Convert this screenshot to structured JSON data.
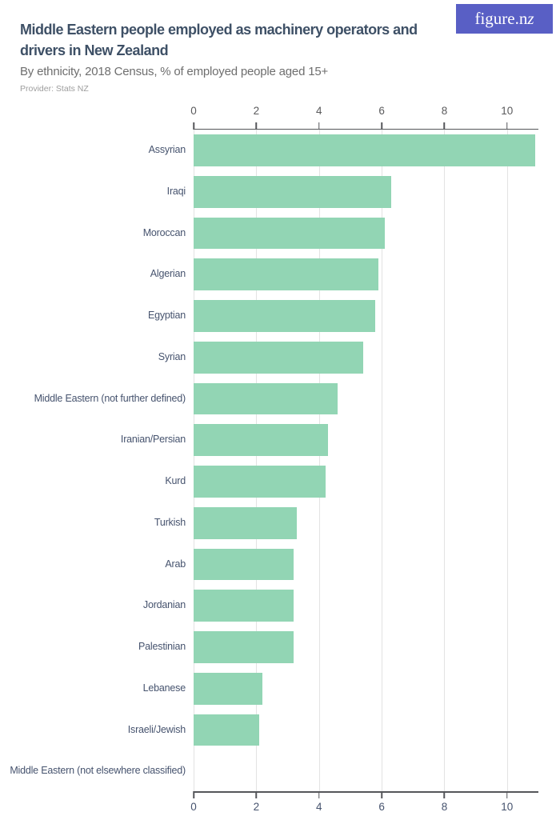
{
  "logo": {
    "text_main": "figure.n",
    "text_z": "z",
    "bg_color": "#595fc5",
    "text_color": "#ffffff"
  },
  "header": {
    "title": "Middle Eastern people employed as machinery operators and drivers in New Zealand",
    "subtitle": "By ethnicity, 2018 Census, % of employed people aged 15+",
    "provider": "Provider: Stats NZ",
    "title_color": "#3e5066"
  },
  "chart_data": {
    "type": "bar",
    "orientation": "horizontal",
    "title": "Middle Eastern people employed as machinery operators and drivers in New Zealand",
    "subtitle": "By ethnicity, 2018 Census, % of employed people aged 15+",
    "xlabel": "",
    "ylabel": "",
    "unit": "% of employed people aged 15+",
    "xlim": [
      0,
      11
    ],
    "xticks": [
      0,
      2,
      4,
      6,
      8,
      10
    ],
    "grid": true,
    "axis_label_positions": "top and bottom",
    "legend": "none",
    "bar_color": "#92d5b4",
    "gridline_color": "#e3e3e3",
    "categories": [
      "Assyrian",
      "Iraqi",
      "Moroccan",
      "Algerian",
      "Egyptian",
      "Syrian",
      "Middle Eastern (not further defined)",
      "Iranian/Persian",
      "Kurd",
      "Turkish",
      "Arab",
      "Jordanian",
      "Palestinian",
      "Lebanese",
      "Israeli/Jewish",
      "Middle Eastern (not elsewhere classified)"
    ],
    "values": [
      10.9,
      6.3,
      6.1,
      5.9,
      5.8,
      5.4,
      4.6,
      4.3,
      4.2,
      3.3,
      3.2,
      3.2,
      3.2,
      2.2,
      2.1,
      0
    ]
  }
}
